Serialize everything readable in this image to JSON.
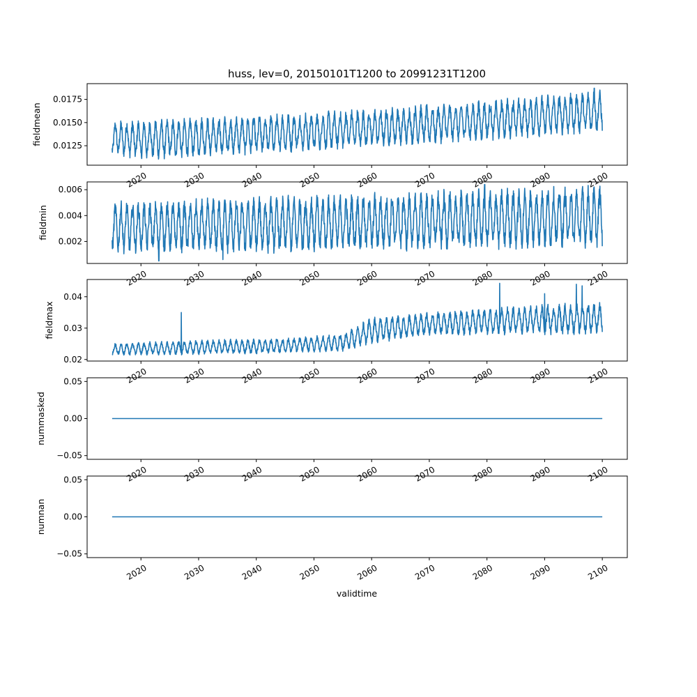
{
  "figure_title": "huss, lev=0, 20150101T1200 to 20991231T1200",
  "xlabel": "validtime",
  "chart_data": [
    {
      "type": "line",
      "title": "huss, lev=0, 20150101T1200 to 20991231T1200",
      "ylabel": "fieldmean",
      "xlim": [
        "2010-09-01",
        "2104-05-01"
      ],
      "ylim": [
        0.0104,
        0.0192
      ],
      "x_ticks": [
        "2020",
        "2030",
        "2040",
        "2050",
        "2060",
        "2070",
        "2080",
        "2090",
        "2100"
      ],
      "y_ticks": [
        "0.0125",
        "0.0150",
        "0.0175"
      ],
      "series": [
        {
          "x_start": "2015-01-01",
          "x_end": "2099-12-31",
          "pattern": "seasonal cycle",
          "trend_low": [
            [
              2015,
              0.0117
            ],
            [
              2020,
              0.0112
            ],
            [
              2040,
              0.0118
            ],
            [
              2060,
              0.0125
            ],
            [
              2080,
              0.0133
            ],
            [
              2100,
              0.0142
            ]
          ],
          "trend_high": [
            [
              2015,
              0.015
            ],
            [
              2020,
              0.0151
            ],
            [
              2040,
              0.0156
            ],
            [
              2060,
              0.0163
            ],
            [
              2080,
              0.0172
            ],
            [
              2100,
              0.0183
            ]
          ],
          "extremes": [
            [
              2098.6,
              0.0187
            ]
          ]
        }
      ]
    },
    {
      "type": "line",
      "ylabel": "fieldmin",
      "xlim": [
        "2010-09-01",
        "2104-05-01"
      ],
      "ylim": [
        0.0003,
        0.0066
      ],
      "x_ticks": [
        "2020",
        "2030",
        "2040",
        "2050",
        "2060",
        "2070",
        "2080",
        "2090",
        "2100"
      ],
      "y_ticks": [
        "0.002",
        "0.004",
        "0.006"
      ],
      "series": [
        {
          "x_start": "2015-01-01",
          "x_end": "2099-12-31",
          "pattern": "seasonal cycle",
          "trend_low": [
            [
              2015,
              0.0013
            ],
            [
              2040,
              0.0013
            ],
            [
              2070,
              0.0015
            ],
            [
              2100,
              0.0018
            ]
          ],
          "trend_high": [
            [
              2015,
              0.0049
            ],
            [
              2040,
              0.0052
            ],
            [
              2070,
              0.0057
            ],
            [
              2100,
              0.0061
            ]
          ],
          "extremes": [
            [
              2023.1,
              0.0005
            ],
            [
              2034.2,
              0.0006
            ],
            [
              2079.6,
              0.0064
            ]
          ]
        }
      ]
    },
    {
      "type": "line",
      "ylabel": "fieldmax",
      "xlim": [
        "2010-09-01",
        "2104-05-01"
      ],
      "ylim": [
        0.0195,
        0.0455
      ],
      "x_ticks": [
        "2020",
        "2030",
        "2040",
        "2050",
        "2060",
        "2070",
        "2080",
        "2090",
        "2100"
      ],
      "y_ticks": [
        "0.02",
        "0.03",
        "0.04"
      ],
      "series": [
        {
          "x_start": "2015-01-01",
          "x_end": "2099-12-31",
          "pattern": "seasonal cycle",
          "trend_low": [
            [
              2015,
              0.0215
            ],
            [
              2040,
              0.022
            ],
            [
              2055,
              0.0228
            ],
            [
              2060,
              0.0255
            ],
            [
              2070,
              0.028
            ],
            [
              2100,
              0.0285
            ]
          ],
          "trend_high": [
            [
              2015,
              0.025
            ],
            [
              2030,
              0.026
            ],
            [
              2045,
              0.0265
            ],
            [
              2055,
              0.028
            ],
            [
              2060,
              0.033
            ],
            [
              2075,
              0.0355
            ],
            [
              2100,
              0.038
            ]
          ],
          "extremes": [
            [
              2027.0,
              0.035
            ],
            [
              2082.2,
              0.0443
            ],
            [
              2090.0,
              0.041
            ],
            [
              2095.5,
              0.044
            ],
            [
              2096.5,
              0.0435
            ]
          ]
        }
      ]
    },
    {
      "type": "line",
      "ylabel": "nummasked",
      "xlim": [
        "2010-09-01",
        "2104-05-01"
      ],
      "ylim": [
        -0.055,
        0.055
      ],
      "x_ticks": [
        "2020",
        "2030",
        "2040",
        "2050",
        "2060",
        "2070",
        "2080",
        "2090",
        "2100"
      ],
      "y_ticks": [
        "−0.05",
        "0.00",
        "0.05"
      ],
      "series": [
        {
          "x": [
            "2015-01-01",
            "2099-12-31"
          ],
          "values": [
            0,
            0
          ]
        }
      ]
    },
    {
      "type": "line",
      "ylabel": "numnan",
      "xlim": [
        "2010-09-01",
        "2104-05-01"
      ],
      "ylim": [
        -0.055,
        0.055
      ],
      "x_ticks": [
        "2020",
        "2030",
        "2040",
        "2050",
        "2060",
        "2070",
        "2080",
        "2090",
        "2100"
      ],
      "y_ticks": [
        "−0.05",
        "0.00",
        "0.05"
      ],
      "series": [
        {
          "x": [
            "2015-01-01",
            "2099-12-31"
          ],
          "values": [
            0,
            0
          ]
        }
      ]
    }
  ],
  "colors": {
    "series": "#1f77b4",
    "axes": "#000000",
    "background": "#ffffff"
  }
}
